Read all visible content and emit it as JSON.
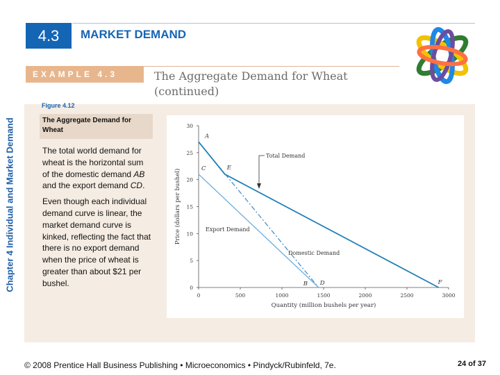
{
  "side_label": "Chapter 4  Individual and Market Demand",
  "section": {
    "number": "4.3",
    "title": "MARKET DEMAND"
  },
  "example": {
    "label": "EXAMPLE 4.3",
    "title_line1": "The Aggregate Demand for Wheat",
    "title_line2": "(continued)"
  },
  "figure": {
    "label": "Figure 4.12",
    "caption": "The Aggregate Demand for Wheat"
  },
  "body": {
    "p1_text": "The total world demand for wheat is the horizontal sum of the domestic demand ",
    "p1_em1": "AB",
    "p1_mid": " and the export demand ",
    "p1_em2": "CD",
    "p1_end": ".",
    "p2": "Even though each individual demand curve is linear, the market demand curve is kinked, reflecting the fact that there is no export demand when the price of wheat is greater than about $21 per bushel."
  },
  "chart_data": {
    "type": "line",
    "xlabel": "Quantity (million bushels per year)",
    "ylabel": "Price (dollars per bushel)",
    "xlim": [
      0,
      3000
    ],
    "ylim": [
      0,
      30
    ],
    "x_ticks": [
      0,
      500,
      1000,
      1500,
      2000,
      2500,
      3000
    ],
    "y_ticks": [
      0,
      5,
      10,
      15,
      20,
      25,
      30
    ],
    "grid": false,
    "series": [
      {
        "name": "Domestic Demand",
        "points": [
          [
            0,
            27
          ],
          [
            1440,
            0
          ]
        ],
        "style": "dashdot",
        "color": "#4a8fc8"
      },
      {
        "name": "Export Demand",
        "points": [
          [
            0,
            21
          ],
          [
            1440,
            0
          ]
        ],
        "style": "solid",
        "color": "#6aaede"
      },
      {
        "name": "Total Demand",
        "points": [
          [
            0,
            27
          ],
          [
            315,
            21
          ],
          [
            2880,
            0
          ]
        ],
        "style": "solid",
        "color": "#1f7fb8"
      }
    ],
    "point_labels": [
      {
        "text": "A",
        "x": 0,
        "y": 27
      },
      {
        "text": "C",
        "x": 0,
        "y": 21
      },
      {
        "text": "E",
        "x": 315,
        "y": 21
      },
      {
        "text": "B",
        "x": 1440,
        "y": 0
      },
      {
        "text": "D",
        "x": 1440,
        "y": 0
      },
      {
        "text": "F",
        "x": 2880,
        "y": 0
      }
    ],
    "annotations": [
      {
        "text": "Total Demand"
      },
      {
        "text": "Export Demand"
      },
      {
        "text": "Domestic Demand"
      }
    ]
  },
  "footer": "© 2008 Prentice Hall Business Publishing  •  Microeconomics  •  Pindyck/Rubinfeld, 7e.",
  "page": {
    "current": "24",
    "of_label": "of",
    "total": "37"
  },
  "colors": {
    "accent": "#1565b5",
    "example_bar": "#e8b68d",
    "panel": "#f5ece3",
    "caption_bg": "#e7d8c9"
  }
}
